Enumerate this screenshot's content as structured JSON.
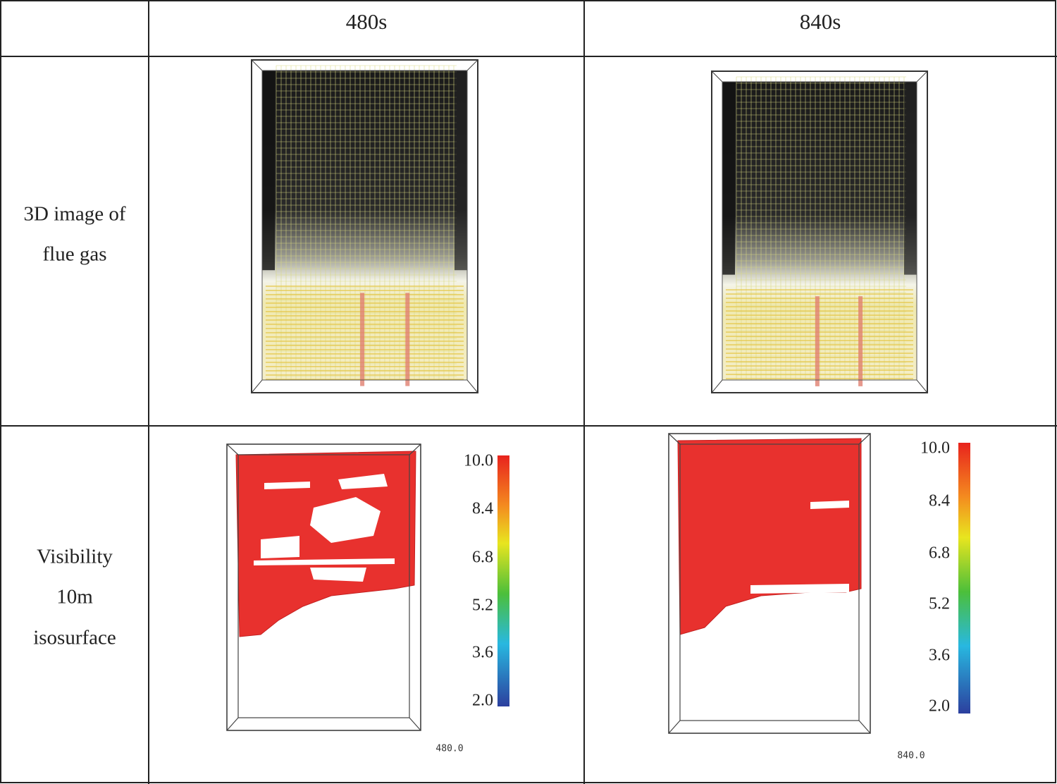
{
  "table": {
    "columns": [
      "480s",
      "840s"
    ],
    "rows": [
      {
        "label": [
          "3D image of",
          "flue gas"
        ]
      },
      {
        "label": [
          "Visibility",
          "10m",
          "isosurface"
        ]
      }
    ]
  },
  "visibility_panels": [
    {
      "colorbar_ticks": [
        "10.0",
        "8.4",
        "6.8",
        "5.2",
        "3.6",
        "2.0"
      ],
      "timestamp": "480.0"
    },
    {
      "colorbar_ticks": [
        "10.0",
        "8.4",
        "6.8",
        "5.2",
        "3.6",
        "2.0"
      ],
      "timestamp": "840.0"
    }
  ]
}
